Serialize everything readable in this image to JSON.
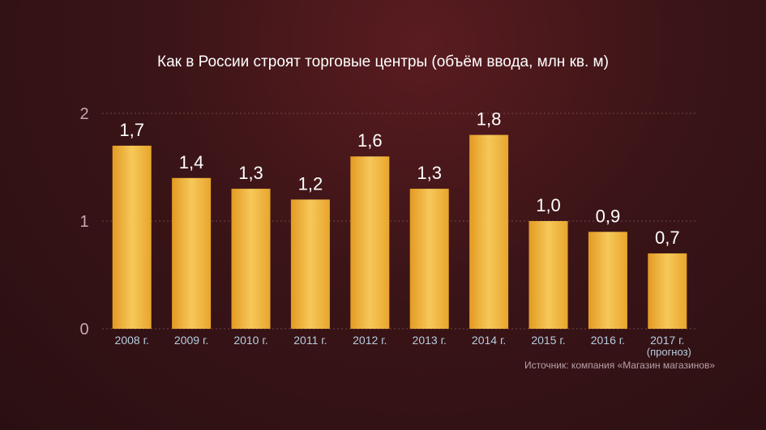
{
  "colors": {
    "background": "#3a1417",
    "bar": "#f2b13a",
    "bar_highlight": "#f6c85a",
    "text": "#ffffff",
    "axis_labels": "#b8cde0",
    "tick_labels": "#c9a9b0",
    "grid": "#8a5a5e"
  },
  "chart_data": {
    "type": "bar",
    "title": "Как в России строят торговые центры (объём ввода, млн кв. м)",
    "categories": [
      "2008 г.",
      "2009 г.",
      "2010 г.",
      "2011 г.",
      "2012 г.",
      "2013 г.",
      "2014 г.",
      "2015 г.",
      "2016 г.",
      "2017 г."
    ],
    "category_notes": [
      "",
      "",
      "",
      "",
      "",
      "",
      "",
      "",
      "",
      "(прогноз)"
    ],
    "values": [
      1.7,
      1.4,
      1.3,
      1.2,
      1.6,
      1.3,
      1.8,
      1.0,
      0.9,
      0.7
    ],
    "value_labels": [
      "1,7",
      "1,4",
      "1,3",
      "1,2",
      "1,6",
      "1,3",
      "1,8",
      "1,0",
      "0,9",
      "0,7"
    ],
    "ylim": [
      0,
      2
    ],
    "yticks": [
      "0",
      "1",
      "2"
    ],
    "grid": true,
    "source": "Источник: компания «Магазин магазинов»"
  }
}
